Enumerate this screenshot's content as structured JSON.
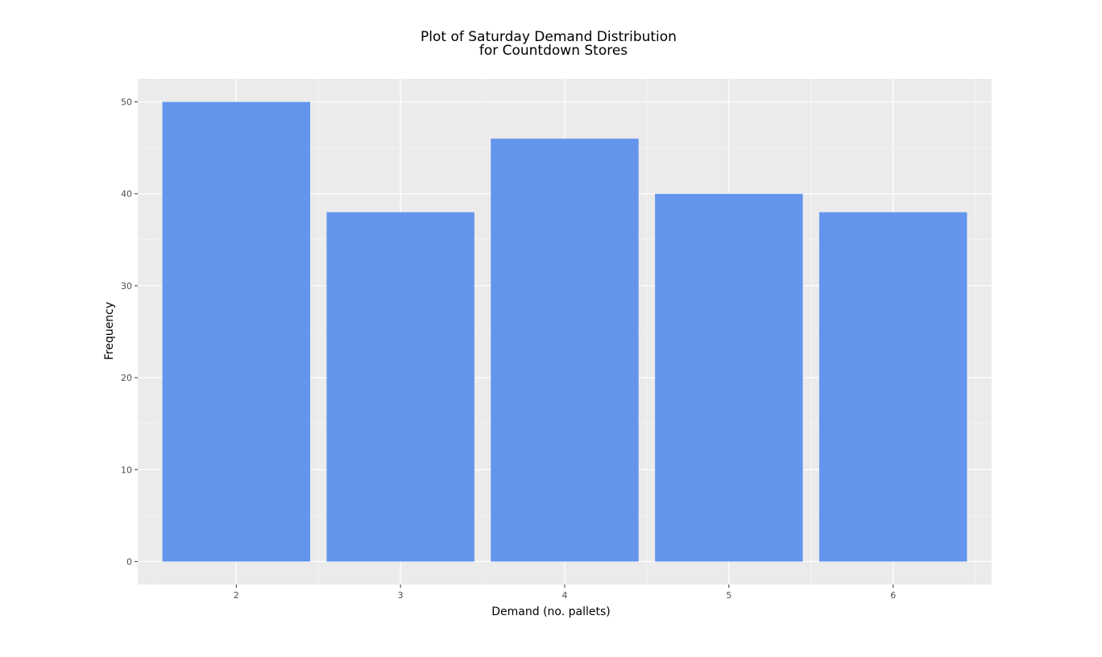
{
  "chart_data": {
    "type": "bar",
    "title_lines": [
      "Plot of Saturday Demand Distribution",
      "for Countdown Stores"
    ],
    "xlabel": "Demand (no. pallets)",
    "ylabel": "Frequency",
    "categories": [
      "2",
      "3",
      "4",
      "5",
      "6"
    ],
    "values": [
      50,
      38,
      46,
      40,
      38
    ],
    "ylim": [
      -2.5,
      52.5
    ],
    "yticks": [
      0,
      10,
      20,
      30,
      40,
      50
    ],
    "grid": true,
    "legend": "none"
  },
  "colors": {
    "bar": "#6495ED",
    "panel_background": "#EBEBEB",
    "grid_major": "#FFFFFF",
    "grid_minor": "#F5F5F5",
    "tick_text": "#4D4D4D"
  }
}
